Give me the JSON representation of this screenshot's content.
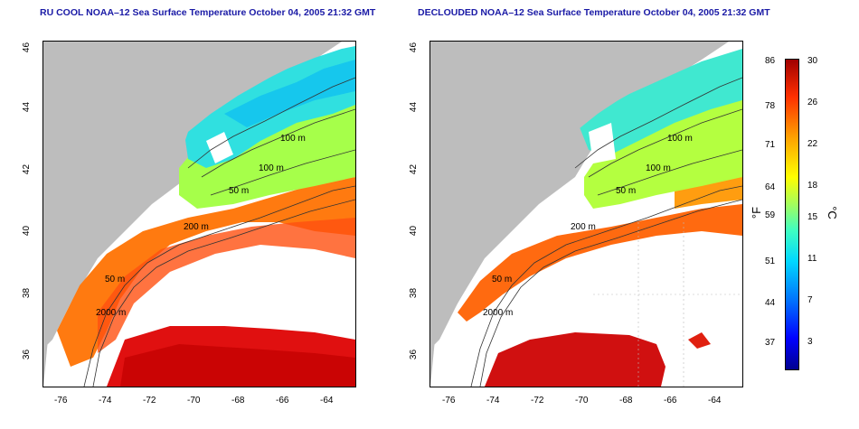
{
  "left_panel": {
    "title": "RU COOL NOAA–12 Sea Surface Temperature October 04, 2005 21:32 GMT",
    "contour_labels": [
      "100 m",
      "100 m",
      "50 m",
      "200 m",
      "50 m",
      "2000 m"
    ]
  },
  "right_panel": {
    "title": "DECLOUDED NOAA–12 Sea Surface Temperature October 04, 2005 21:32 GMT",
    "contour_labels": [
      "100 m",
      "100 m",
      "50 m",
      "200 m",
      "50 m",
      "2000 m"
    ]
  },
  "axes": {
    "x_ticks": [
      "-76",
      "-74",
      "-72",
      "-70",
      "-68",
      "-66",
      "-64"
    ],
    "y_ticks": [
      "46",
      "44",
      "42",
      "40",
      "38",
      "36"
    ]
  },
  "colorbar": {
    "fahrenheit_labels": [
      "86",
      "78",
      "71",
      "64",
      "59",
      "51",
      "44",
      "37"
    ],
    "celsius_labels": [
      "30",
      "26",
      "22",
      "18",
      "15",
      "11",
      "7",
      "3"
    ],
    "unit_f": "°F",
    "unit_c": "°C"
  },
  "colors": {
    "land": "#bdbdbd",
    "cloud": "#ffffff",
    "title": "#1a1aa6"
  }
}
